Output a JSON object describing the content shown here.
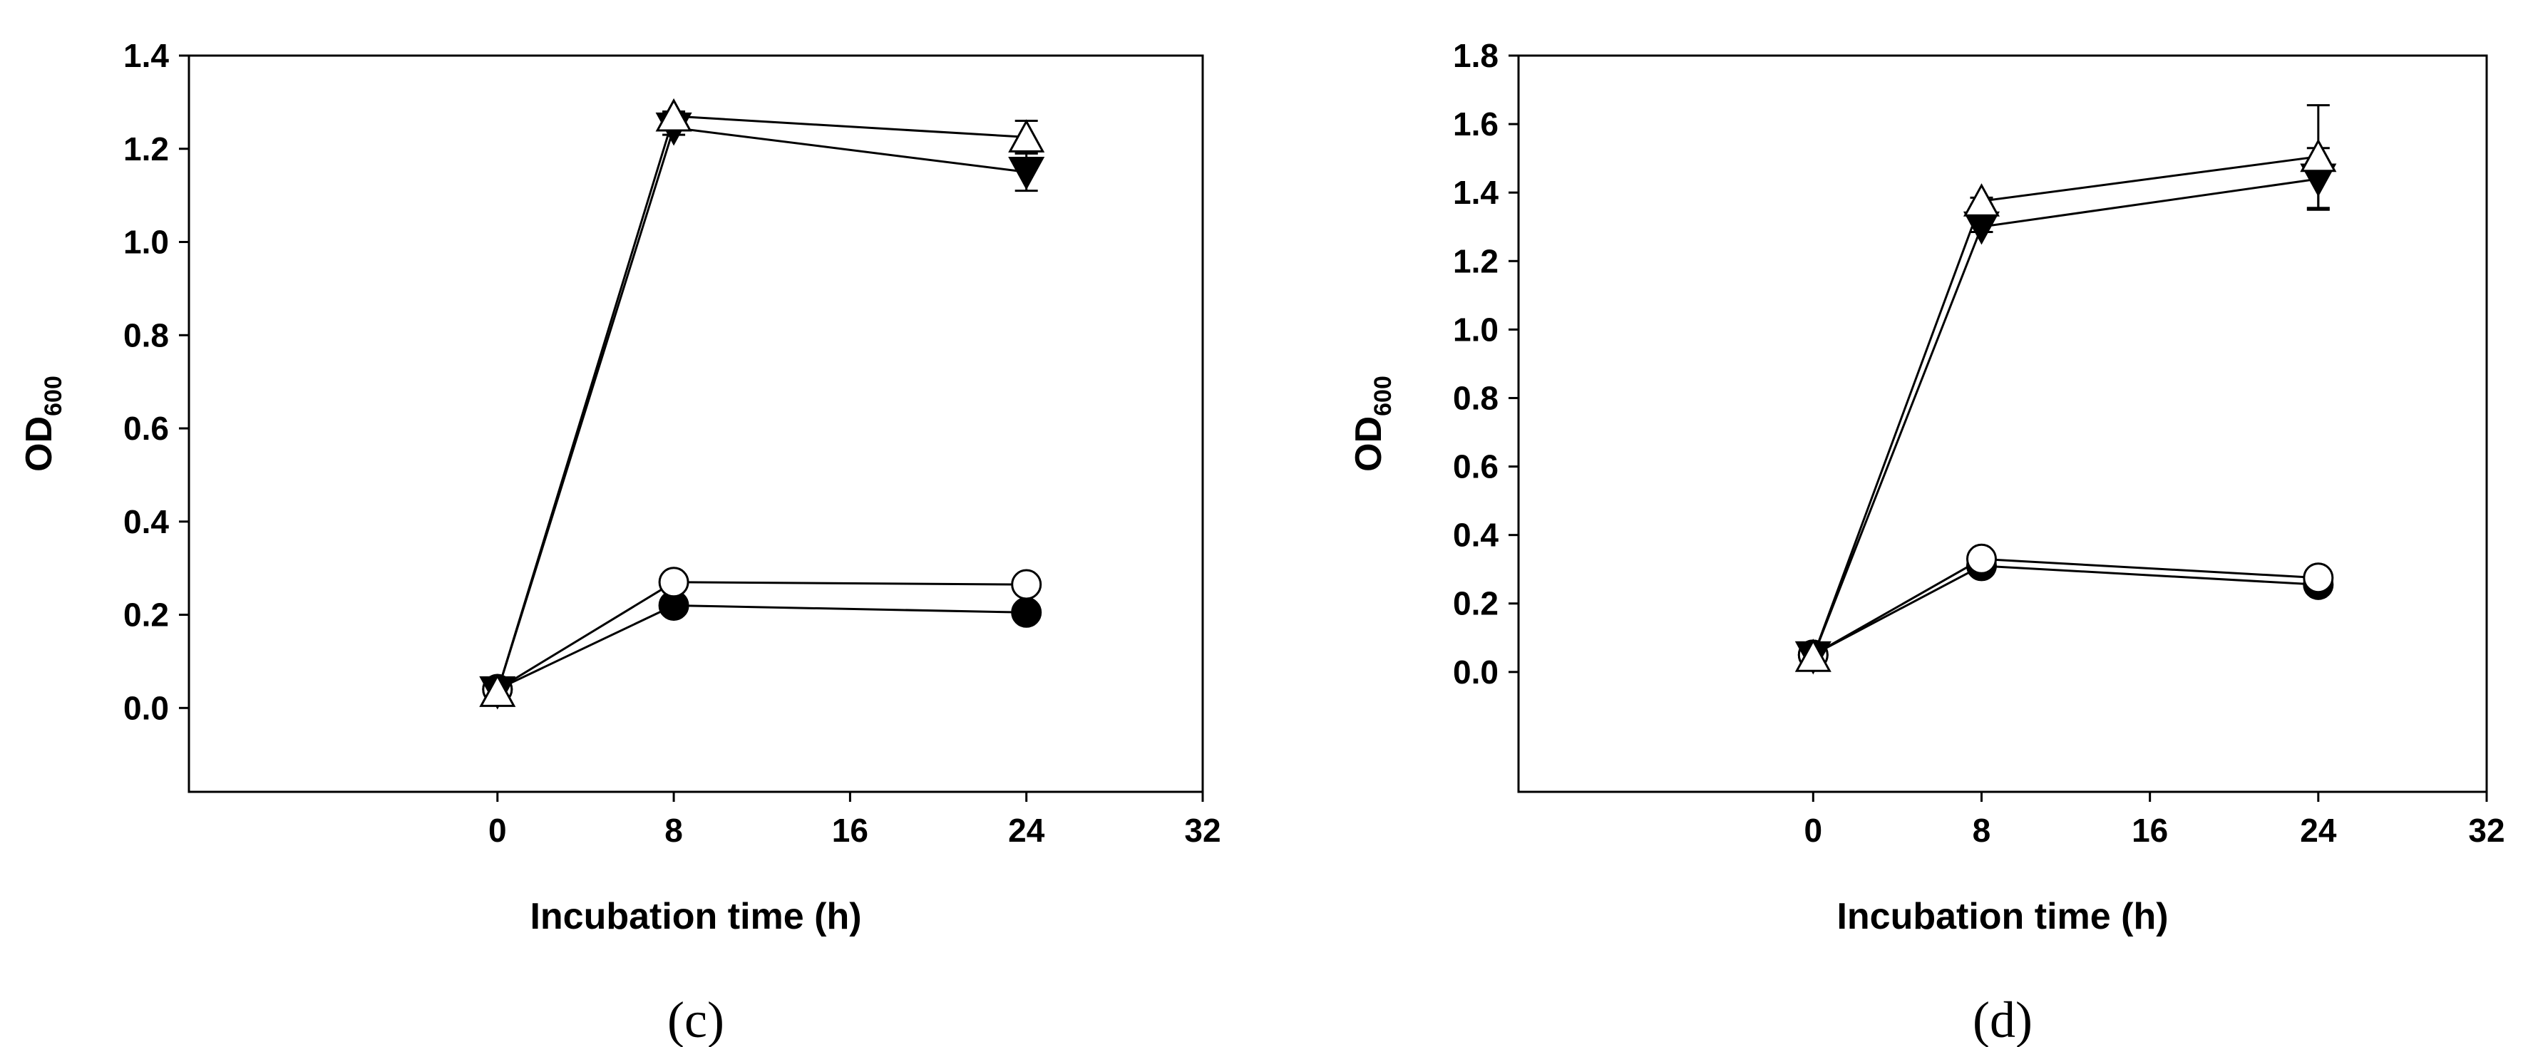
{
  "chart_data": [
    {
      "type": "line",
      "panel_label": "(c)",
      "xlabel": "Incubation time (h)",
      "ylabel": "OD",
      "ylabel_sub": "600",
      "xlim": [
        -14,
        32
      ],
      "ylim": [
        -0.18,
        1.4
      ],
      "xticks": [
        0,
        8,
        16,
        24,
        32
      ],
      "yticks": [
        0.0,
        0.2,
        0.4,
        0.6,
        0.8,
        1.0,
        1.2,
        1.4
      ],
      "x": [
        0,
        8,
        24
      ],
      "series": [
        {
          "marker": "circle-filled",
          "values": [
            0.04,
            0.22,
            0.205
          ],
          "err": [
            0.005,
            0.01,
            0.015
          ]
        },
        {
          "marker": "circle-open",
          "values": [
            0.04,
            0.27,
            0.265
          ],
          "err": [
            0.005,
            0.01,
            0.01
          ]
        },
        {
          "marker": "triangle-down-filled",
          "values": [
            0.035,
            1.245,
            1.15
          ],
          "err": [
            0.005,
            0.015,
            0.04
          ]
        },
        {
          "marker": "triangle-up-open",
          "values": [
            0.035,
            1.27,
            1.225
          ],
          "err": [
            0.005,
            0.01,
            0.035
          ]
        }
      ]
    },
    {
      "type": "line",
      "panel_label": "(d)",
      "xlabel": "Incubation time (h)",
      "ylabel": "OD",
      "ylabel_sub": "600",
      "xlim": [
        -14,
        32
      ],
      "ylim": [
        -0.35,
        1.8
      ],
      "xticks": [
        0,
        8,
        16,
        24,
        32
      ],
      "yticks": [
        0.0,
        0.2,
        0.4,
        0.6,
        0.8,
        1.0,
        1.2,
        1.4,
        1.6,
        1.8
      ],
      "x": [
        0,
        8,
        24
      ],
      "series": [
        {
          "marker": "circle-filled",
          "values": [
            0.05,
            0.31,
            0.255
          ],
          "err": [
            0.005,
            0.01,
            0.01
          ]
        },
        {
          "marker": "circle-open",
          "values": [
            0.05,
            0.33,
            0.275
          ],
          "err": [
            0.005,
            0.01,
            0.01
          ]
        },
        {
          "marker": "triangle-down-filled",
          "values": [
            0.045,
            1.3,
            1.44
          ],
          "err": [
            0.005,
            0.015,
            0.09
          ]
        },
        {
          "marker": "triangle-up-open",
          "values": [
            0.045,
            1.375,
            1.505
          ],
          "err": [
            0.005,
            0.01,
            0.15
          ]
        }
      ]
    }
  ],
  "colors": {
    "axis": "#000000",
    "filled": "#000000",
    "open": "#ffffff"
  }
}
